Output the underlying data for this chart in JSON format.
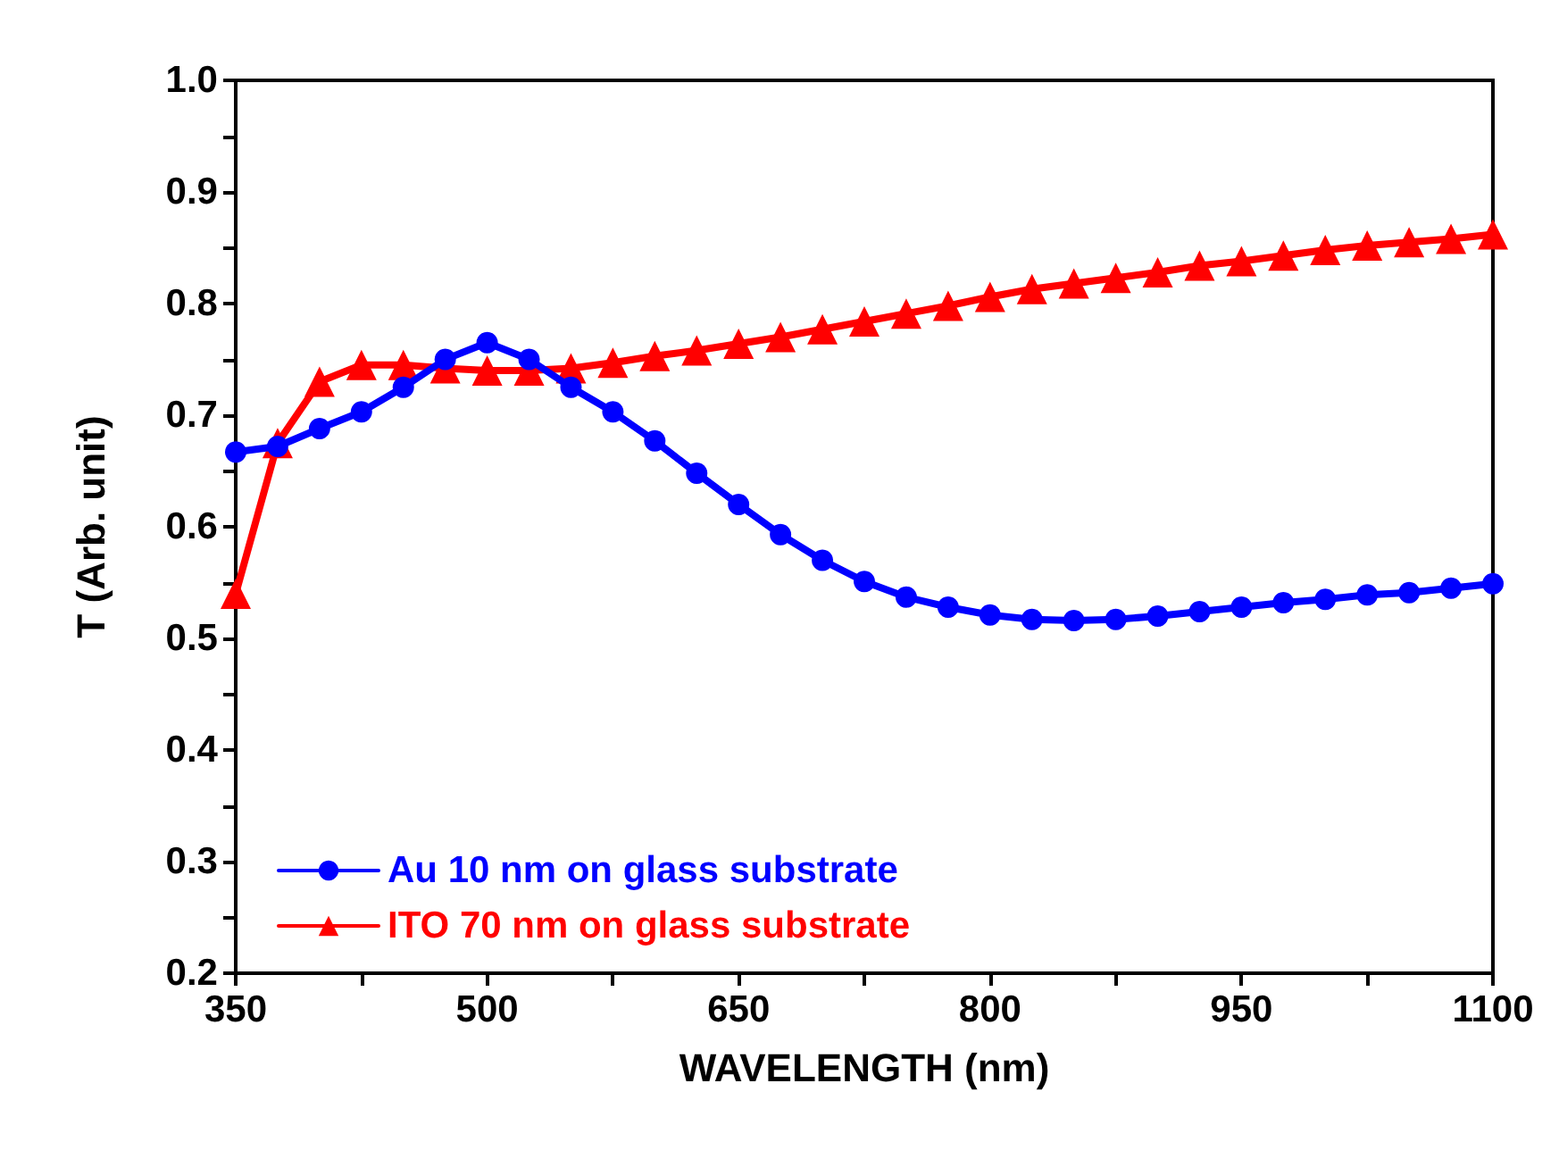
{
  "chart_data": {
    "type": "line",
    "xlabel": "WAVELENGTH (nm)",
    "ylabel": "T (Arb. unit)",
    "x": [
      350,
      375,
      400,
      425,
      450,
      475,
      500,
      525,
      550,
      575,
      600,
      625,
      650,
      675,
      700,
      725,
      750,
      775,
      800,
      825,
      850,
      875,
      900,
      925,
      950,
      975,
      1000,
      1025,
      1050,
      1075,
      1100
    ],
    "series": [
      {
        "name": "Au 10 nm on glass substrate",
        "color": "#0000ff",
        "marker": "circle",
        "values": [
          0.667,
          0.672,
          0.688,
          0.703,
          0.725,
          0.75,
          0.765,
          0.75,
          0.725,
          0.703,
          0.677,
          0.648,
          0.62,
          0.593,
          0.57,
          0.551,
          0.537,
          0.528,
          0.521,
          0.517,
          0.516,
          0.517,
          0.52,
          0.524,
          0.528,
          0.532,
          0.535,
          0.539,
          0.541,
          0.545,
          0.549
        ]
      },
      {
        "name": "ITO 70 nm on glass substrate",
        "color": "#ff0000",
        "marker": "triangle",
        "values": [
          0.54,
          0.675,
          0.73,
          0.745,
          0.745,
          0.742,
          0.74,
          0.74,
          0.742,
          0.747,
          0.753,
          0.758,
          0.764,
          0.77,
          0.777,
          0.784,
          0.791,
          0.798,
          0.806,
          0.813,
          0.818,
          0.823,
          0.828,
          0.834,
          0.838,
          0.843,
          0.848,
          0.852,
          0.855,
          0.858,
          0.862
        ]
      }
    ],
    "xlim": [
      350,
      1100
    ],
    "xticks": [
      350,
      {
        "value": 425,
        "label": null
      },
      500,
      {
        "value": 575,
        "label": null
      },
      650,
      {
        "value": 725,
        "label": null
      },
      800,
      {
        "value": 875,
        "label": null
      },
      950,
      {
        "value": 1025,
        "label": null
      },
      1100
    ],
    "ylim": [
      0.2,
      1.0
    ],
    "yticks": [
      0.2,
      {
        "value": 0.25,
        "label": null
      },
      0.3,
      {
        "value": 0.35,
        "label": null
      },
      0.4,
      {
        "value": 0.45,
        "label": null
      },
      0.5,
      {
        "value": 0.55,
        "label": null
      },
      0.6,
      {
        "value": 0.65,
        "label": null
      },
      0.7,
      {
        "value": 0.75,
        "label": null
      },
      0.8,
      {
        "value": 0.85,
        "label": null
      },
      0.9,
      {
        "value": 0.95,
        "label": null
      },
      {
        "value": 1.0,
        "label": "1.0"
      }
    ],
    "grid": false,
    "legend": "bottom left",
    "line_style": "solid"
  }
}
